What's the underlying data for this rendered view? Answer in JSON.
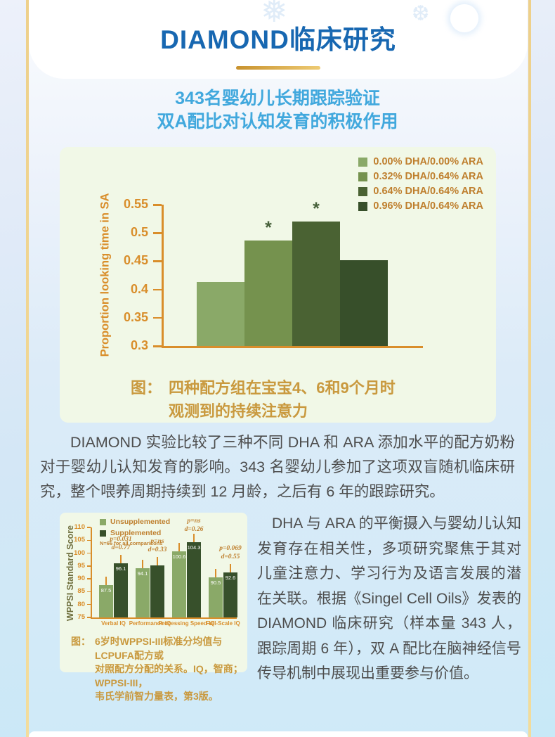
{
  "header": {
    "title": "DIAMOND临床研究",
    "subtitle_lines": [
      "343名婴幼儿长期跟踪验证",
      "双A配比对认知发育的积极作用"
    ]
  },
  "sections": {
    "paragraph1": "DIAMOND 实验比较了三种不同 DHA 和 ARA 添加水平的配方奶粉对于婴幼儿认知发育的影响。343 名婴幼儿参加了这项双盲随机临床研究，整个喂养周期持续到 12 月龄，之后有 6 年的跟踪研究。",
    "paragraph2": "DHA 与 ARA 的平衡摄入与婴幼儿认知发育存在相关性，多项研究聚焦于其对儿童注意力、学习行为及语言发展的潜在关联。根据《Singel Cell Oils》发表的 DIAMOND 临床研究（样本量 343 人，跟踪周期 6 年），双 A 配比在脑神经信号传导机制中展现出重要参与价值。"
  },
  "colors": {
    "title": "#1767b1",
    "subtitle": "#41a8dd",
    "goldline": "#eed08a",
    "div1": "#c8922e",
    "div2": "#eecb74",
    "cardbg": "#f1f8e7",
    "axis": "#d98e2b",
    "legend": "#bf7f2e",
    "caption": "#c9993e",
    "text": "#4d4d4d",
    "star": "#46603a"
  },
  "chart_data": [
    {
      "type": "bar",
      "title": "四种配方组在宝宝4、6和9个月时观测到的持续注意力",
      "ylabel": "Proportion looking time in SA",
      "ylim": [
        0.3,
        0.55
      ],
      "yticks": [
        0.55,
        0.5,
        0.45,
        0.4,
        0.35,
        0.3
      ],
      "grid": false,
      "legend_position": "top-right",
      "legend": [
        "0.00% DHA/0.00% ARA",
        "0.32% DHA/0.64% ARA",
        "0.64% DHA/0.64% ARA",
        "0.96% DHA/0.64% ARA"
      ],
      "bar_colors": [
        "#8aa968",
        "#75924e",
        "#4a6233",
        "#374f2a"
      ],
      "values": [
        0.413,
        0.486,
        0.52,
        0.452
      ],
      "significant": [
        false,
        true,
        true,
        false
      ],
      "star": "*",
      "caption_label": "图：",
      "caption": "四种配方组在宝宝4、6和9个月时观测到的持续注意力",
      "caption_lines": [
        "四种配方组在宝宝4、6和9个月时",
        "观测到的持续注意力"
      ]
    },
    {
      "type": "bar",
      "title": "6岁时WPPSI-III标准分均值与LCPUFA配方或对照配方分配的关系",
      "ylabel": "WPPSI Standard Score",
      "ylim": [
        75,
        110
      ],
      "yticks": [
        75,
        80,
        85,
        90,
        95,
        100,
        105,
        110
      ],
      "grid": false,
      "legend": [
        "Unsupplemented",
        "Supplemented"
      ],
      "legend_note": "N=66 for all comparisons",
      "bar_colors": [
        "#8aa968",
        "#37502b"
      ],
      "categories": [
        "Verbal IQ",
        "Performance IQ",
        "Processing Speed IQ",
        "Full-Scale IQ"
      ],
      "series": [
        {
          "name": "Unsupplemented",
          "values": [
            87.5,
            94.1,
            100.6,
            90.5
          ]
        },
        {
          "name": "Supplemented",
          "values": [
            96.1,
            95.2,
            104.3,
            92.6
          ]
        }
      ],
      "bar_labels": [
        [
          "87.5",
          "96.1"
        ],
        [
          "94.1",
          ""
        ],
        [
          "100.6",
          "104.3"
        ],
        [
          "90.5",
          "92.6"
        ]
      ],
      "annotations": [
        {
          "p": "p=0.031",
          "d": "d=0.77"
        },
        {
          "p": "p=ns",
          "d": "d=0.33"
        },
        {
          "p": "p=ns",
          "d": "d=0.26"
        },
        {
          "p": "p=0.069",
          "d": "d=0.55"
        }
      ],
      "caption_label": "图：",
      "caption": "6岁时WPPSI-III标准分均值与LCPUFA配方或对照配方分配的关系。IQ，智商；WPPSI-III，韦氏学前智力量表，第3版。",
      "caption_lines": [
        "6岁时WPPSI-III标准分均值与LCPUFA配方或",
        "对照配方分配的关系。IQ，智商；WPPSI-III，",
        "韦氏学前智力量表，第3版。"
      ]
    }
  ]
}
